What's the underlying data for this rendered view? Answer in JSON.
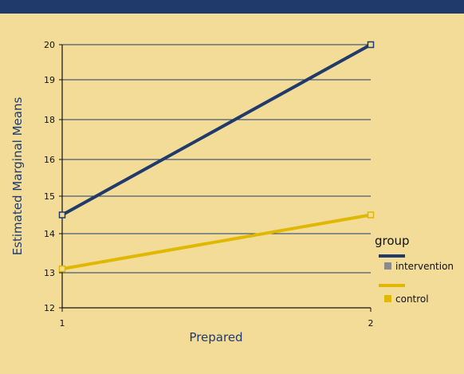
{
  "colors": {
    "background": "#f2dc98",
    "top_bar": "#1f3a6b",
    "intervention": "#1f3a6b",
    "control": "#e0b800",
    "grid": "#1f3a6b"
  },
  "chart_data": {
    "type": "line",
    "xlabel": "Prepared",
    "ylabel": "Estimated Marginal Means",
    "x": [
      "1",
      "2"
    ],
    "y_tick_labels": [
      "12",
      "13",
      "14",
      "15",
      "16",
      "18",
      "19",
      "20"
    ],
    "y_tick_values": [
      12,
      13,
      14,
      15,
      16,
      18,
      19,
      20
    ],
    "ylim": [
      12,
      20
    ],
    "grid": true,
    "series": [
      {
        "name": "intervention",
        "values": [
          14.5,
          20
        ]
      },
      {
        "name": "control",
        "values": [
          13.1,
          14.5
        ]
      }
    ],
    "legend": {
      "title": "group",
      "position": "right"
    }
  }
}
